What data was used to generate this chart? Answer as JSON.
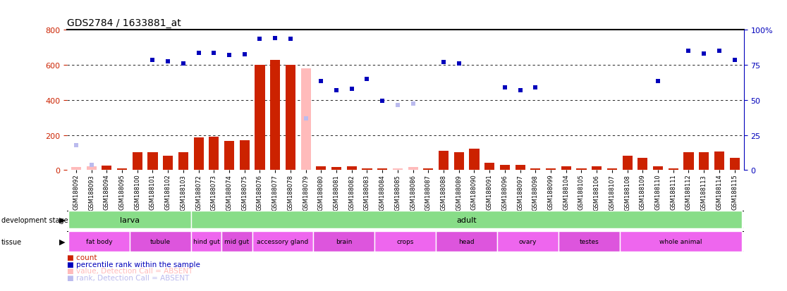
{
  "title": "GDS2784 / 1633881_at",
  "samples": [
    "GSM188092",
    "GSM188093",
    "GSM188094",
    "GSM188095",
    "GSM188100",
    "GSM188101",
    "GSM188102",
    "GSM188103",
    "GSM188072",
    "GSM188073",
    "GSM188074",
    "GSM188075",
    "GSM188076",
    "GSM188077",
    "GSM188078",
    "GSM188079",
    "GSM188080",
    "GSM188081",
    "GSM188082",
    "GSM188083",
    "GSM188084",
    "GSM188085",
    "GSM188086",
    "GSM188087",
    "GSM188088",
    "GSM188089",
    "GSM188090",
    "GSM188091",
    "GSM188096",
    "GSM188097",
    "GSM188098",
    "GSM188099",
    "GSM188104",
    "GSM188105",
    "GSM188106",
    "GSM188107",
    "GSM188108",
    "GSM188109",
    "GSM188110",
    "GSM188111",
    "GSM188112",
    "GSM188113",
    "GSM188114",
    "GSM188115"
  ],
  "counts": [
    15,
    20,
    25,
    10,
    100,
    100,
    80,
    100,
    185,
    190,
    165,
    170,
    600,
    630,
    600,
    580,
    20,
    15,
    20,
    10,
    10,
    10,
    15,
    10,
    110,
    100,
    120,
    40,
    30,
    30,
    10,
    10,
    20,
    10,
    20,
    10,
    80,
    70,
    20,
    10,
    100,
    100,
    105,
    70
  ],
  "rank": [
    null,
    null,
    null,
    null,
    null,
    630,
    620,
    610,
    670,
    670,
    655,
    660,
    750,
    755,
    750,
    null,
    510,
    455,
    465,
    520,
    395,
    null,
    null,
    null,
    615,
    610,
    null,
    null,
    470,
    455,
    470,
    null,
    null,
    null,
    null,
    null,
    null,
    null,
    510,
    null,
    680,
    665,
    680,
    630
  ],
  "rank_absent": [
    140,
    30,
    null,
    null,
    null,
    null,
    null,
    null,
    null,
    null,
    null,
    null,
    null,
    null,
    null,
    295,
    null,
    null,
    null,
    null,
    null,
    370,
    380,
    null,
    null,
    null,
    null,
    null,
    null,
    null,
    null,
    null,
    null,
    null,
    null,
    null,
    null,
    null,
    null,
    null,
    null,
    null,
    null,
    null
  ],
  "is_absent": [
    true,
    true,
    false,
    false,
    false,
    false,
    false,
    false,
    false,
    false,
    false,
    false,
    false,
    false,
    false,
    true,
    false,
    false,
    false,
    false,
    false,
    true,
    true,
    false,
    false,
    false,
    false,
    false,
    false,
    false,
    false,
    false,
    false,
    false,
    false,
    false,
    false,
    false,
    false,
    false,
    false,
    false,
    false,
    false
  ],
  "ylim_left": [
    0,
    800
  ],
  "ylim_right": [
    0,
    100
  ],
  "yticks_left": [
    0,
    200,
    400,
    600,
    800
  ],
  "yticks_right": [
    0,
    25,
    50,
    75,
    100
  ],
  "bar_color": "#CC2200",
  "rank_color": "#0000BB",
  "absent_bar_color": "#FFBBBB",
  "absent_rank_color": "#BBBBEE",
  "grid_color": "#000000",
  "title_fontsize": 10,
  "tick_fontsize": 6,
  "legend_fontsize": 7.5,
  "dev_color": "#88DD88",
  "tis_color1": "#EE66EE",
  "tis_color2": "#DD55DD",
  "development_stage_groups": [
    {
      "label": "larva",
      "start": 0,
      "end": 8
    },
    {
      "label": "adult",
      "start": 8,
      "end": 44
    }
  ],
  "tissue_groups": [
    {
      "label": "fat body",
      "start": 0,
      "end": 4
    },
    {
      "label": "tubule",
      "start": 4,
      "end": 8
    },
    {
      "label": "hind gut",
      "start": 8,
      "end": 10
    },
    {
      "label": "mid gut",
      "start": 10,
      "end": 12
    },
    {
      "label": "accessory gland",
      "start": 12,
      "end": 16
    },
    {
      "label": "brain",
      "start": 16,
      "end": 20
    },
    {
      "label": "crops",
      "start": 20,
      "end": 24
    },
    {
      "label": "head",
      "start": 24,
      "end": 28
    },
    {
      "label": "ovary",
      "start": 28,
      "end": 32
    },
    {
      "label": "testes",
      "start": 32,
      "end": 36
    },
    {
      "label": "whole animal",
      "start": 36,
      "end": 44
    }
  ]
}
